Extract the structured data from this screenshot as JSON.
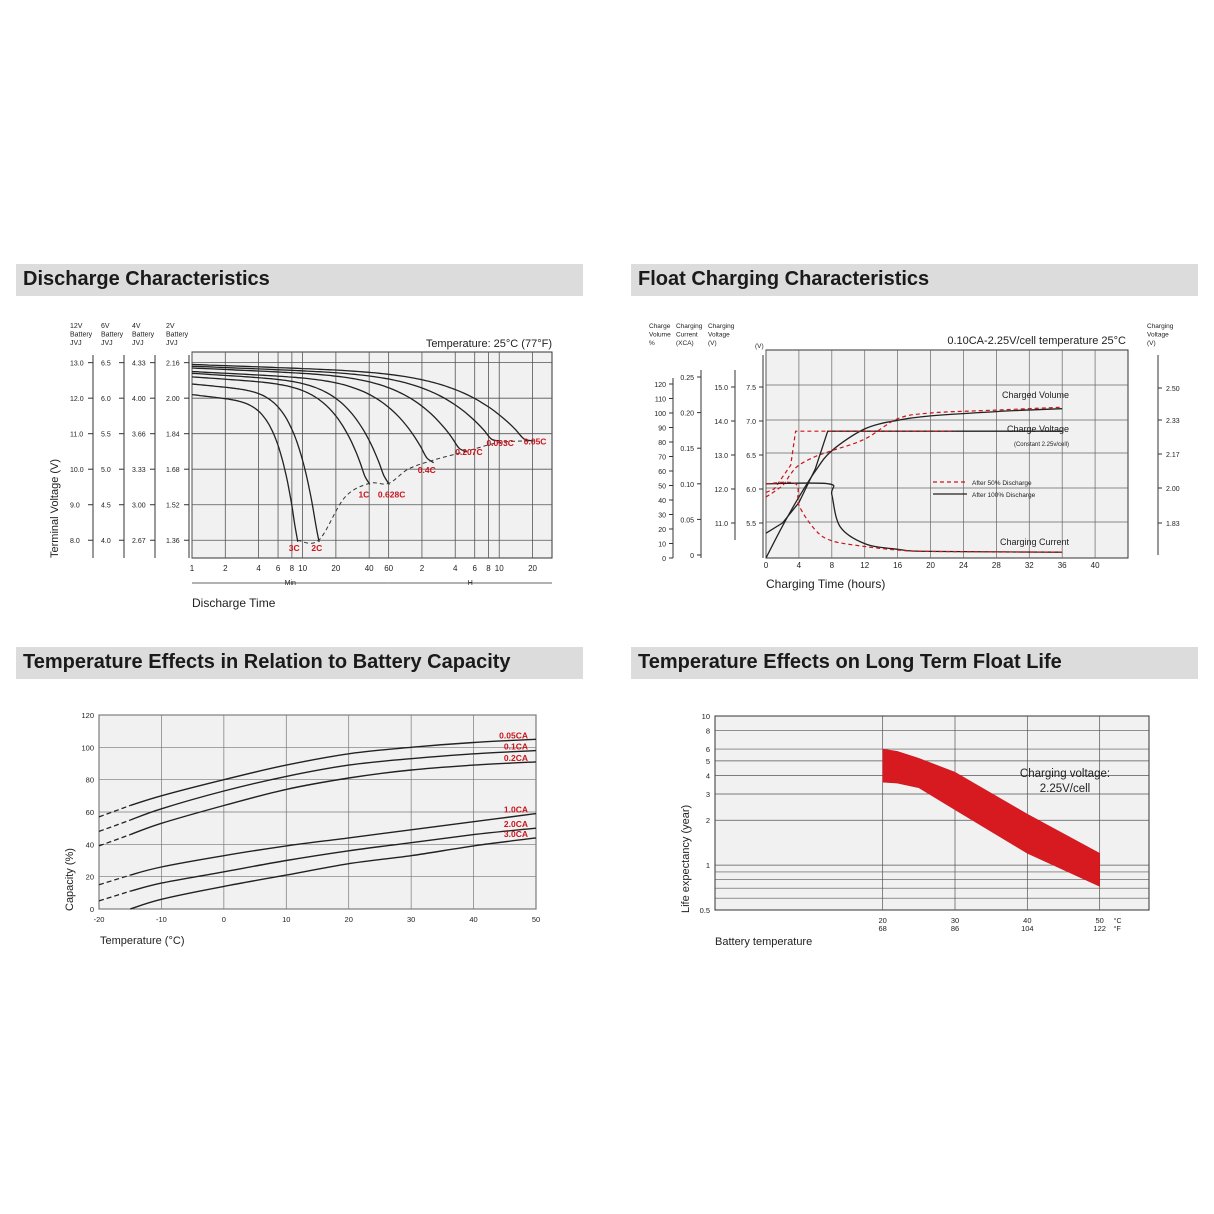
{
  "panels": {
    "discharge": {
      "title": "Discharge Characteristics"
    },
    "float": {
      "title": "Float Charging Characteristics"
    },
    "temp_capacity": {
      "title": "Temperature Effects in Relation to Battery Capacity"
    },
    "float_life": {
      "title": "Temperature Effects on Long Term Float Life"
    }
  },
  "chart_data": [
    {
      "id": "discharge",
      "type": "line",
      "title": "Discharge Characteristics",
      "annotation": "Temperature: 25°C (77°F)",
      "ylabel": "Terminal Voltage (V)",
      "xlabel": "Discharge Time",
      "voltage_scales": [
        {
          "header": [
            "12V",
            "Battery",
            "JVJ"
          ],
          "ticks": [
            "13.0",
            "12.0",
            "11.0",
            "10.0",
            "9.0",
            "8.0"
          ]
        },
        {
          "header": [
            "6V",
            "Battery",
            "JVJ"
          ],
          "ticks": [
            "6.5",
            "6.0",
            "5.5",
            "5.0",
            "4.5",
            "4.0"
          ]
        },
        {
          "header": [
            "4V",
            "Battery",
            "JVJ"
          ],
          "ticks": [
            "4.33",
            "4.00",
            "3.66",
            "3.33",
            "3.00",
            "2.67"
          ]
        },
        {
          "header": [
            "2V",
            "Battery",
            "JVJ"
          ],
          "ticks": [
            "2.16",
            "2.00",
            "1.84",
            "1.68",
            "1.52",
            "1.36"
          ]
        }
      ],
      "ylim": [
        7.5,
        13.3
      ],
      "x_ticks_min": [
        "1",
        "2",
        "4",
        "6",
        "8",
        "10",
        "20",
        "40",
        "60"
      ],
      "x_ticks_h": [
        "2",
        "4",
        "6",
        "8",
        "10",
        "20"
      ],
      "x_unit_min": "Min",
      "x_unit_h": "H",
      "series": [
        {
          "label": "3C",
          "cutoff_min": 9,
          "cutoff_v": 8.0,
          "start_v": 12.1
        },
        {
          "label": "2C",
          "cutoff_min": 14,
          "cutoff_v": 8.0,
          "start_v": 12.4
        },
        {
          "label": "1C",
          "cutoff_min": 40,
          "cutoff_v": 9.6,
          "start_v": 12.6
        },
        {
          "label": "0.628C",
          "cutoff_min": 60,
          "cutoff_v": 9.6,
          "start_v": 12.7
        },
        {
          "label": "0.4C",
          "cutoff_min": 150,
          "cutoff_v": 10.2,
          "start_v": 12.75
        },
        {
          "label": "0.207C",
          "cutoff_min": 300,
          "cutoff_v": 10.5,
          "start_v": 12.85
        },
        {
          "label": "0.093C",
          "cutoff_min": 600,
          "cutoff_v": 10.8,
          "start_v": 12.9
        },
        {
          "label": "0.05C",
          "cutoff_min": 1200,
          "cutoff_v": 10.8,
          "start_v": 12.95
        }
      ]
    },
    {
      "id": "float",
      "type": "line",
      "title": "Float Charging Characteristics",
      "annotation": "0.10CA-2.25V/cell  temperature 25°C",
      "xlabel": "Charging Time (hours)",
      "x_ticks": [
        0,
        4,
        8,
        12,
        16,
        20,
        24,
        28,
        32,
        36,
        40
      ],
      "xlim": [
        0,
        44
      ],
      "axes": [
        {
          "header": [
            "Charge",
            "Volume",
            "%"
          ],
          "ticks": [
            "120",
            "110",
            "100",
            "90",
            "80",
            "70",
            "60",
            "50",
            "40",
            "30",
            "20",
            "10",
            "0"
          ]
        },
        {
          "header": [
            "Charging",
            "Current",
            "(XCA)"
          ],
          "ticks": [
            "0.25",
            "0.20",
            "0.15",
            "0.10",
            "0.05",
            "0"
          ]
        },
        {
          "header": [
            "Charging",
            "Voltage",
            "(V)"
          ],
          "ticks": [
            "15.0",
            "14.0",
            "13.0",
            "12.0",
            "11.0"
          ]
        },
        {
          "header": [
            "(V)"
          ],
          "ticks": [
            "7.5",
            "7.0",
            "6.5",
            "6.0",
            "5.5"
          ]
        },
        {
          "header": [
            "Charging",
            "Voltage",
            "(V)"
          ],
          "ticks": [
            "2.50",
            "2.33",
            "2.17",
            "2.00",
            "1.83"
          ]
        }
      ],
      "curve_labels": [
        "Charged Volume",
        "Charge Voltage",
        "(Constant 2.25v/cell)",
        "Charging Current"
      ],
      "legend": [
        "After  50% Discharge",
        "After 100% Discharge"
      ],
      "series": [
        {
          "name": "Charged Volume (100%)",
          "style": "solid",
          "x": [
            0,
            2,
            4,
            6,
            8,
            12,
            16,
            20,
            28,
            36
          ],
          "y": [
            0,
            22,
            42,
            60,
            74,
            89,
            95,
            98,
            101,
            103
          ]
        },
        {
          "name": "Charged Volume (50%)",
          "style": "dashed",
          "x": [
            0,
            2,
            3,
            4,
            6,
            8,
            12,
            16,
            20,
            28,
            36
          ],
          "y": [
            42,
            50,
            58,
            64,
            70,
            74,
            82,
            96,
            100,
            102,
            104
          ]
        },
        {
          "name": "Charge Voltage (100%)",
          "style": "solid",
          "x": [
            0,
            2,
            4,
            6,
            7.5,
            8,
            36
          ],
          "y": [
            5.35,
            5.5,
            5.8,
            6.3,
            6.85,
            6.85,
            6.85
          ]
        },
        {
          "name": "Charge Voltage (50%)",
          "style": "dashed",
          "x": [
            0,
            1,
            3,
            3.6,
            4,
            8,
            23
          ],
          "y": [
            5.95,
            6.0,
            6.35,
            6.85,
            6.85,
            6.85,
            6.85
          ]
        },
        {
          "name": "Charging Current (100%)",
          "style": "solid",
          "x": [
            0,
            7.6,
            8,
            9,
            12,
            16,
            20,
            36
          ],
          "y": [
            0.1,
            0.1,
            0.085,
            0.04,
            0.016,
            0.008,
            0.005,
            0.004
          ]
        },
        {
          "name": "Charging Current (50%)",
          "style": "dashed",
          "x": [
            0,
            3.6,
            4,
            6,
            8,
            12,
            16,
            20,
            36
          ],
          "y": [
            0.1,
            0.1,
            0.07,
            0.035,
            0.02,
            0.012,
            0.007,
            0.005,
            0.004
          ]
        }
      ]
    },
    {
      "id": "temp_capacity",
      "type": "line",
      "title": "Temperature Effects in Relation to Battery Capacity",
      "xlabel": "Temperature (°C)",
      "ylabel": "Capacity (%)",
      "xlim": [
        -20,
        50
      ],
      "ylim": [
        0,
        120
      ],
      "x_ticks": [
        -20,
        -10,
        0,
        10,
        20,
        30,
        40,
        50
      ],
      "y_ticks": [
        0,
        20,
        40,
        60,
        80,
        100,
        120
      ],
      "series": [
        {
          "name": "0.05CA",
          "x": [
            -20,
            -15,
            -10,
            0,
            10,
            20,
            30,
            40,
            50
          ],
          "y": [
            57,
            64,
            70,
            80,
            89,
            96,
            100,
            103,
            105
          ]
        },
        {
          "name": "0.1CA",
          "x": [
            -20,
            -15,
            -10,
            0,
            10,
            20,
            30,
            40,
            50
          ],
          "y": [
            48,
            55,
            62,
            73,
            82,
            89,
            93,
            96,
            98
          ]
        },
        {
          "name": "0.2CA",
          "x": [
            -20,
            -15,
            -10,
            0,
            10,
            20,
            30,
            40,
            50
          ],
          "y": [
            39,
            46,
            53,
            64,
            74,
            81,
            86,
            89,
            91
          ]
        },
        {
          "name": "1.0CA",
          "x": [
            -20,
            -15,
            -10,
            0,
            10,
            20,
            30,
            40,
            50
          ],
          "y": [
            15,
            21,
            26,
            33,
            39,
            44,
            49,
            54,
            59
          ]
        },
        {
          "name": "2.0CA",
          "x": [
            -20,
            -15,
            -10,
            0,
            10,
            20,
            30,
            40,
            50
          ],
          "y": [
            5,
            11,
            16,
            23,
            30,
            36,
            41,
            46,
            50
          ]
        },
        {
          "name": "3.0CA",
          "x": [
            -15,
            -10,
            0,
            10,
            20,
            30,
            40,
            50
          ],
          "y": [
            0,
            6,
            14,
            21,
            28,
            33,
            39,
            44
          ]
        }
      ]
    },
    {
      "id": "float_life",
      "type": "area",
      "title": "Temperature Effects on Long Term Float Life",
      "xlabel": "Battery temperature",
      "ylabel": "Life expectancy (year)",
      "annotation": [
        "Charging voltage:",
        "2.25V/cell"
      ],
      "y_scale": "log",
      "ylim": [
        0.5,
        10
      ],
      "xlim_c": [
        0,
        60
      ],
      "y_ticks": [
        "10",
        "8",
        "6",
        "5",
        "4",
        "3",
        "2",
        "1",
        "0.5"
      ],
      "x_ticks_c": [
        "20",
        "30",
        "40",
        "50"
      ],
      "x_ticks_f": [
        "68",
        "86",
        "104",
        "122"
      ],
      "x_units": [
        "°C",
        "°F"
      ],
      "band": {
        "x": [
          20,
          22,
          25,
          30,
          40,
          50
        ],
        "upper": [
          6,
          5.8,
          5.2,
          4.2,
          2.2,
          1.2
        ],
        "lower": [
          3.6,
          3.55,
          3.3,
          2.35,
          1.2,
          0.72
        ]
      }
    }
  ]
}
